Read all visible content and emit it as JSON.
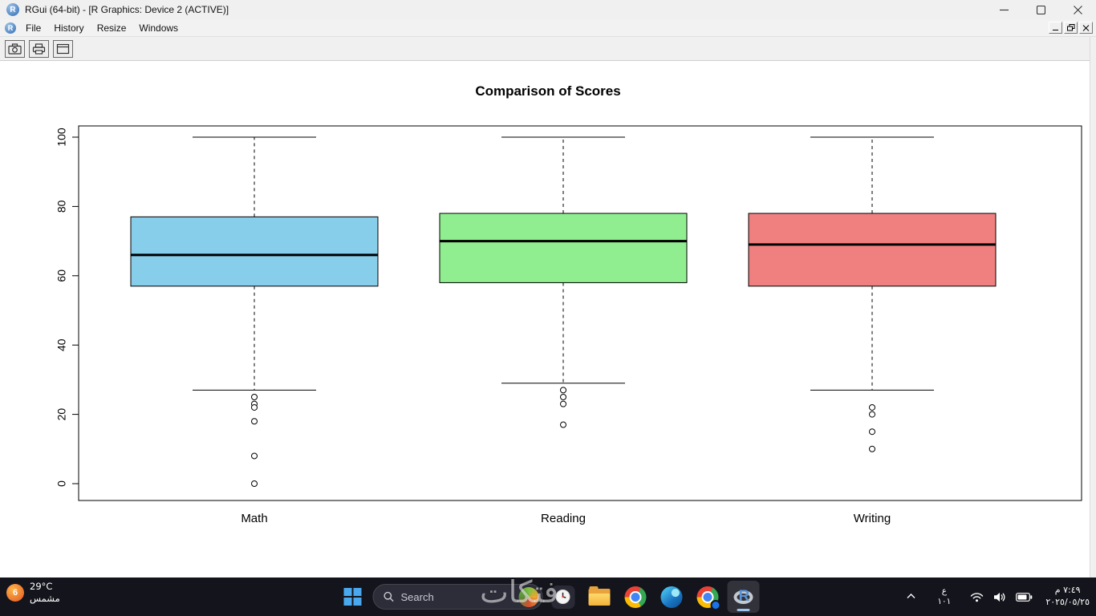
{
  "window": {
    "title": "RGui (64-bit) - [R Graphics: Device 2 (ACTIVE)]",
    "menu": [
      "File",
      "History",
      "Resize",
      "Windows"
    ],
    "toolbar_icons": [
      "camera-icon",
      "print-icon",
      "window-icon"
    ],
    "r_logo_glyph": "R"
  },
  "chart_data": {
    "type": "boxplot",
    "title": "Comparison of Scores",
    "categories": [
      "Math",
      "Reading",
      "Writing"
    ],
    "y_ticks": [
      0,
      20,
      40,
      60,
      80,
      100
    ],
    "ylim": [
      0,
      100
    ],
    "grid": false,
    "legend": "none",
    "series": [
      {
        "name": "Math",
        "color": "#87CEEB",
        "whisker_low": 27,
        "q1": 57,
        "median": 66,
        "q3": 77,
        "whisker_high": 100,
        "outliers": [
          25,
          23,
          22,
          18,
          8,
          0
        ]
      },
      {
        "name": "Reading",
        "color": "#90EE90",
        "whisker_low": 29,
        "q1": 58,
        "median": 70,
        "q3": 78,
        "whisker_high": 100,
        "outliers": [
          27,
          25,
          23,
          17
        ]
      },
      {
        "name": "Writing",
        "color": "#F08080",
        "whisker_low": 27,
        "q1": 57,
        "median": 69,
        "q3": 78,
        "whisker_high": 100,
        "outliers": [
          22,
          20,
          15,
          10
        ]
      }
    ]
  },
  "taskbar": {
    "weather": {
      "badge": "6",
      "temp": "29°C",
      "condition": "مشمس"
    },
    "search": {
      "label": "Search"
    },
    "app_icons": [
      "windows-start-icon",
      "clock-app-icon",
      "file-explorer-icon",
      "chrome-icon",
      "edge-icon",
      "chrome-profile-icon",
      "rgui-icon"
    ],
    "tray": {
      "language_line1": "ع",
      "language_line2": "١٠١",
      "time": "٧:٤٩ م",
      "date": "٢٠٢٥/٠٥/٢٥"
    }
  },
  "watermark": "فتكات"
}
